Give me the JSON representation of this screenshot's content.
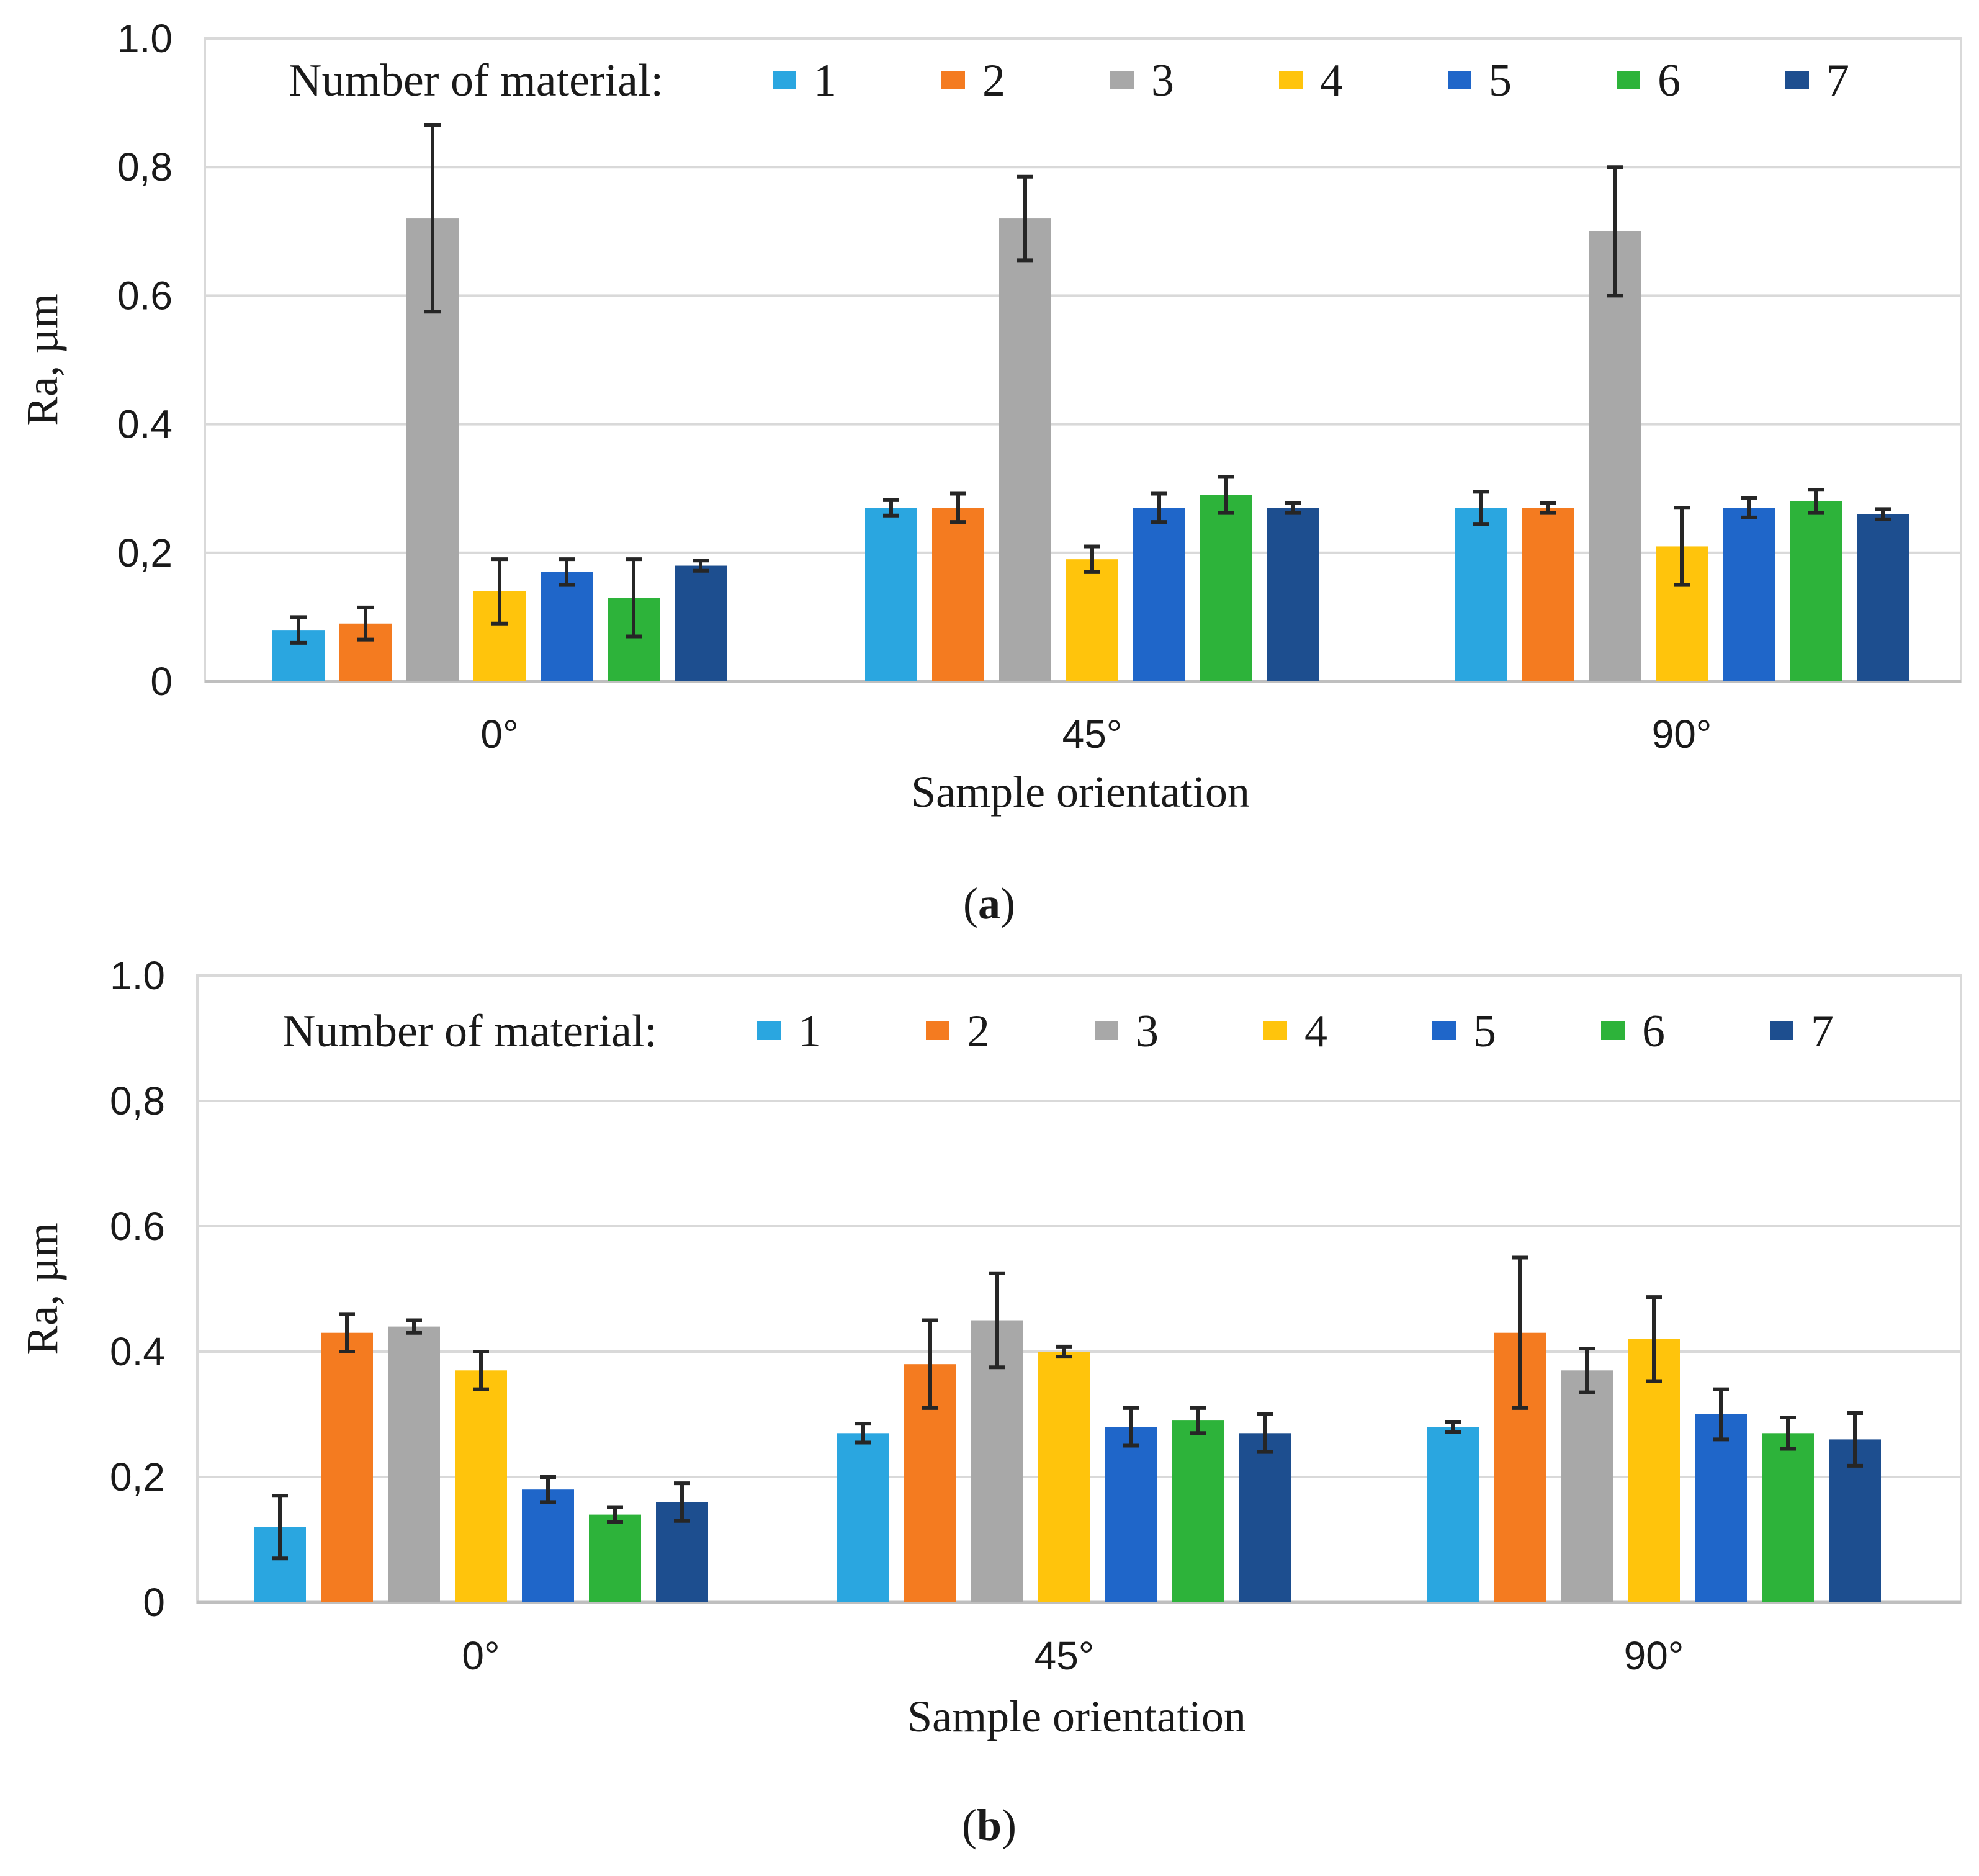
{
  "colors": {
    "1": "#2aa6e0",
    "2": "#f47b20",
    "3": "#a8a8a8",
    "4": "#ffc40c",
    "5": "#1f66c9",
    "6": "#2db33a",
    "7": "#1d4e8f"
  },
  "chart_data": [
    {
      "type": "bar",
      "panel_label": "a",
      "legend_title": "Number of material:",
      "xlabel": "Sample orientation",
      "ylabel": "Ra, µm",
      "ylim": [
        0,
        1.0
      ],
      "yticks": [
        "0",
        "0,2",
        "0.4",
        "0.6",
        "0,8",
        "1.0"
      ],
      "ytick_values": [
        0,
        0.2,
        0.4,
        0.6,
        0.8,
        1.0
      ],
      "categories": [
        "0°",
        "45°",
        "90°"
      ],
      "series": [
        {
          "name": "1",
          "values": [
            0.08,
            0.27,
            0.27
          ],
          "err": [
            0.02,
            0.012,
            0.025
          ]
        },
        {
          "name": "2",
          "values": [
            0.09,
            0.27,
            0.27
          ],
          "err": [
            0.025,
            0.022,
            0.008
          ]
        },
        {
          "name": "3",
          "values": [
            0.72,
            0.72,
            0.7
          ],
          "err": [
            0.145,
            0.065,
            0.1
          ]
        },
        {
          "name": "4",
          "values": [
            0.14,
            0.19,
            0.21
          ],
          "err": [
            0.05,
            0.02,
            0.06
          ]
        },
        {
          "name": "5",
          "values": [
            0.17,
            0.27,
            0.27
          ],
          "err": [
            0.02,
            0.022,
            0.015
          ]
        },
        {
          "name": "6",
          "values": [
            0.13,
            0.29,
            0.28
          ],
          "err": [
            0.06,
            0.028,
            0.018
          ]
        },
        {
          "name": "7",
          "values": [
            0.18,
            0.27,
            0.26
          ],
          "err": [
            0.008,
            0.008,
            0.008
          ]
        }
      ]
    },
    {
      "type": "bar",
      "panel_label": "b",
      "legend_title": "Number of material:",
      "xlabel": "Sample orientation",
      "ylabel": "Ra, µm",
      "ylim": [
        0,
        1.0
      ],
      "yticks": [
        "0",
        "0,2",
        "0.4",
        "0.6",
        "0,8",
        "1.0"
      ],
      "ytick_values": [
        0,
        0.2,
        0.4,
        0.6,
        0.8,
        1.0
      ],
      "categories": [
        "0°",
        "45°",
        "90°"
      ],
      "series": [
        {
          "name": "1",
          "values": [
            0.12,
            0.27,
            0.28
          ],
          "err": [
            0.05,
            0.015,
            0.008
          ]
        },
        {
          "name": "2",
          "values": [
            0.43,
            0.38,
            0.43
          ],
          "err": [
            0.03,
            0.07,
            0.12
          ]
        },
        {
          "name": "3",
          "values": [
            0.44,
            0.45,
            0.37
          ],
          "err": [
            0.01,
            0.075,
            0.035
          ]
        },
        {
          "name": "4",
          "values": [
            0.37,
            0.4,
            0.42
          ],
          "err": [
            0.03,
            0.008,
            0.067
          ]
        },
        {
          "name": "5",
          "values": [
            0.18,
            0.28,
            0.3
          ],
          "err": [
            0.02,
            0.03,
            0.04
          ]
        },
        {
          "name": "6",
          "values": [
            0.14,
            0.29,
            0.27
          ],
          "err": [
            0.012,
            0.02,
            0.025
          ]
        },
        {
          "name": "7",
          "values": [
            0.16,
            0.27,
            0.26
          ],
          "err": [
            0.03,
            0.03,
            0.042
          ]
        }
      ]
    }
  ]
}
